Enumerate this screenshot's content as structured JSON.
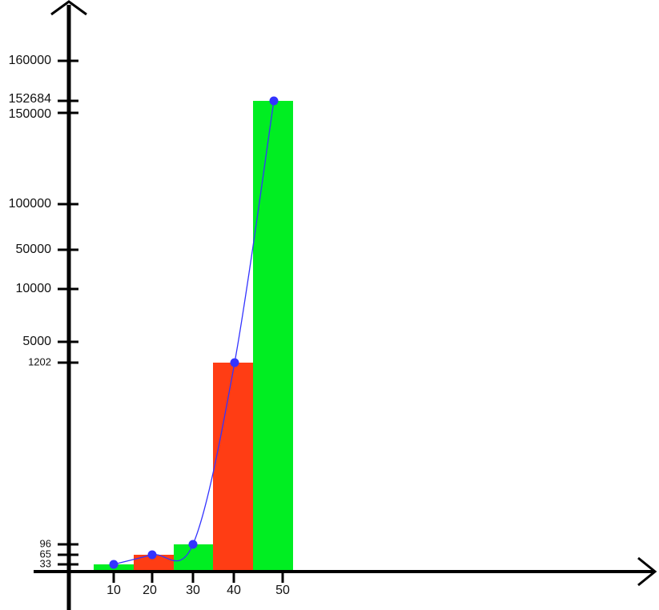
{
  "chart_data": {
    "type": "bar",
    "title": "",
    "xlabel": "",
    "ylabel": "",
    "categories": [
      "10",
      "20",
      "30",
      "40",
      "50"
    ],
    "values": [
      33,
      65,
      96,
      1202,
      152684
    ],
    "bar_colors": [
      "#00ee22",
      "#ff3d14",
      "#00ee22",
      "#ff3d14",
      "#00ee22"
    ],
    "line": {
      "color": "#3333ff",
      "values": [
        33,
        65,
        96,
        1202,
        152684
      ]
    },
    "y_ticks": [
      160000,
      152684,
      150000,
      100000,
      50000,
      10000,
      5000,
      1202,
      96,
      65,
      33
    ],
    "y_scale": "non-linear (irregular)",
    "grid": false,
    "legend": "none"
  }
}
